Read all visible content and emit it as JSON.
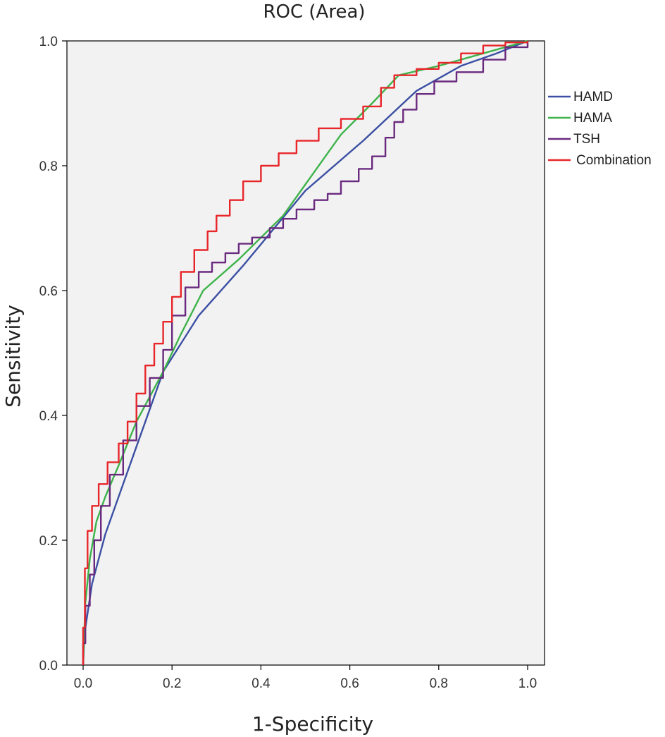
{
  "chart_data": {
    "type": "line",
    "title": "ROC (Area)",
    "xlabel": "1-Specificity",
    "ylabel": "Sensitivity",
    "xlim": [
      0,
      1
    ],
    "ylim": [
      0,
      1
    ],
    "xticks": [
      "0.0",
      "0.2",
      "0.4",
      "0.6",
      "0.8",
      "1.0"
    ],
    "yticks": [
      "0.0",
      "0.2",
      "0.4",
      "0.6",
      "0.8",
      "1.0"
    ],
    "grid": false,
    "legend_position": "right",
    "background_color": "#f2f2f2",
    "series": [
      {
        "name": "HAMD",
        "color": "#3b4fa3",
        "x": [
          0.0,
          0.003,
          0.02,
          0.05,
          0.1,
          0.18,
          0.26,
          0.36,
          0.5,
          0.63,
          0.75,
          0.85,
          0.93,
          1.0
        ],
        "y": [
          0.0,
          0.05,
          0.13,
          0.21,
          0.31,
          0.47,
          0.56,
          0.64,
          0.76,
          0.84,
          0.92,
          0.96,
          0.98,
          1.0
        ]
      },
      {
        "name": "HAMA",
        "color": "#3db34a",
        "x": [
          0.0,
          0.005,
          0.015,
          0.03,
          0.05,
          0.08,
          0.12,
          0.18,
          0.22,
          0.27,
          0.35,
          0.45,
          0.5,
          0.58,
          0.65,
          0.71,
          0.8,
          0.9,
          1.0
        ],
        "y": [
          0.0,
          0.1,
          0.17,
          0.23,
          0.27,
          0.32,
          0.39,
          0.47,
          0.53,
          0.6,
          0.65,
          0.72,
          0.77,
          0.85,
          0.9,
          0.945,
          0.96,
          0.98,
          1.0
        ],
        "step": false
      },
      {
        "name": "TSH",
        "color": "#6a2a7f",
        "x": [
          0.0,
          0.005,
          0.015,
          0.025,
          0.04,
          0.06,
          0.09,
          0.12,
          0.15,
          0.18,
          0.2,
          0.23,
          0.26,
          0.29,
          0.32,
          0.35,
          0.38,
          0.42,
          0.45,
          0.48,
          0.52,
          0.55,
          0.58,
          0.62,
          0.65,
          0.68,
          0.7,
          0.72,
          0.75,
          0.79,
          0.84,
          0.9,
          0.95,
          1.0
        ],
        "y": [
          0.0,
          0.07,
          0.12,
          0.17,
          0.23,
          0.28,
          0.33,
          0.39,
          0.44,
          0.48,
          0.53,
          0.59,
          0.62,
          0.64,
          0.65,
          0.67,
          0.68,
          0.69,
          0.71,
          0.72,
          0.74,
          0.75,
          0.76,
          0.79,
          0.8,
          0.83,
          0.86,
          0.88,
          0.9,
          0.93,
          0.94,
          0.96,
          0.98,
          1.0
        ],
        "step": true
      },
      {
        "name": "Combination",
        "color": "#e8262a",
        "x": [
          0.0,
          0.004,
          0.01,
          0.02,
          0.035,
          0.055,
          0.08,
          0.1,
          0.12,
          0.14,
          0.16,
          0.18,
          0.2,
          0.22,
          0.25,
          0.28,
          0.3,
          0.33,
          0.36,
          0.4,
          0.44,
          0.48,
          0.53,
          0.58,
          0.63,
          0.67,
          0.7,
          0.75,
          0.8,
          0.85,
          0.9,
          0.95,
          1.0
        ],
        "y": [
          0.0,
          0.12,
          0.19,
          0.24,
          0.27,
          0.31,
          0.34,
          0.37,
          0.41,
          0.46,
          0.5,
          0.53,
          0.57,
          0.61,
          0.65,
          0.68,
          0.71,
          0.73,
          0.76,
          0.79,
          0.81,
          0.83,
          0.85,
          0.87,
          0.88,
          0.91,
          0.94,
          0.95,
          0.96,
          0.97,
          0.99,
          0.995,
          1.0
        ],
        "step": true
      }
    ]
  }
}
